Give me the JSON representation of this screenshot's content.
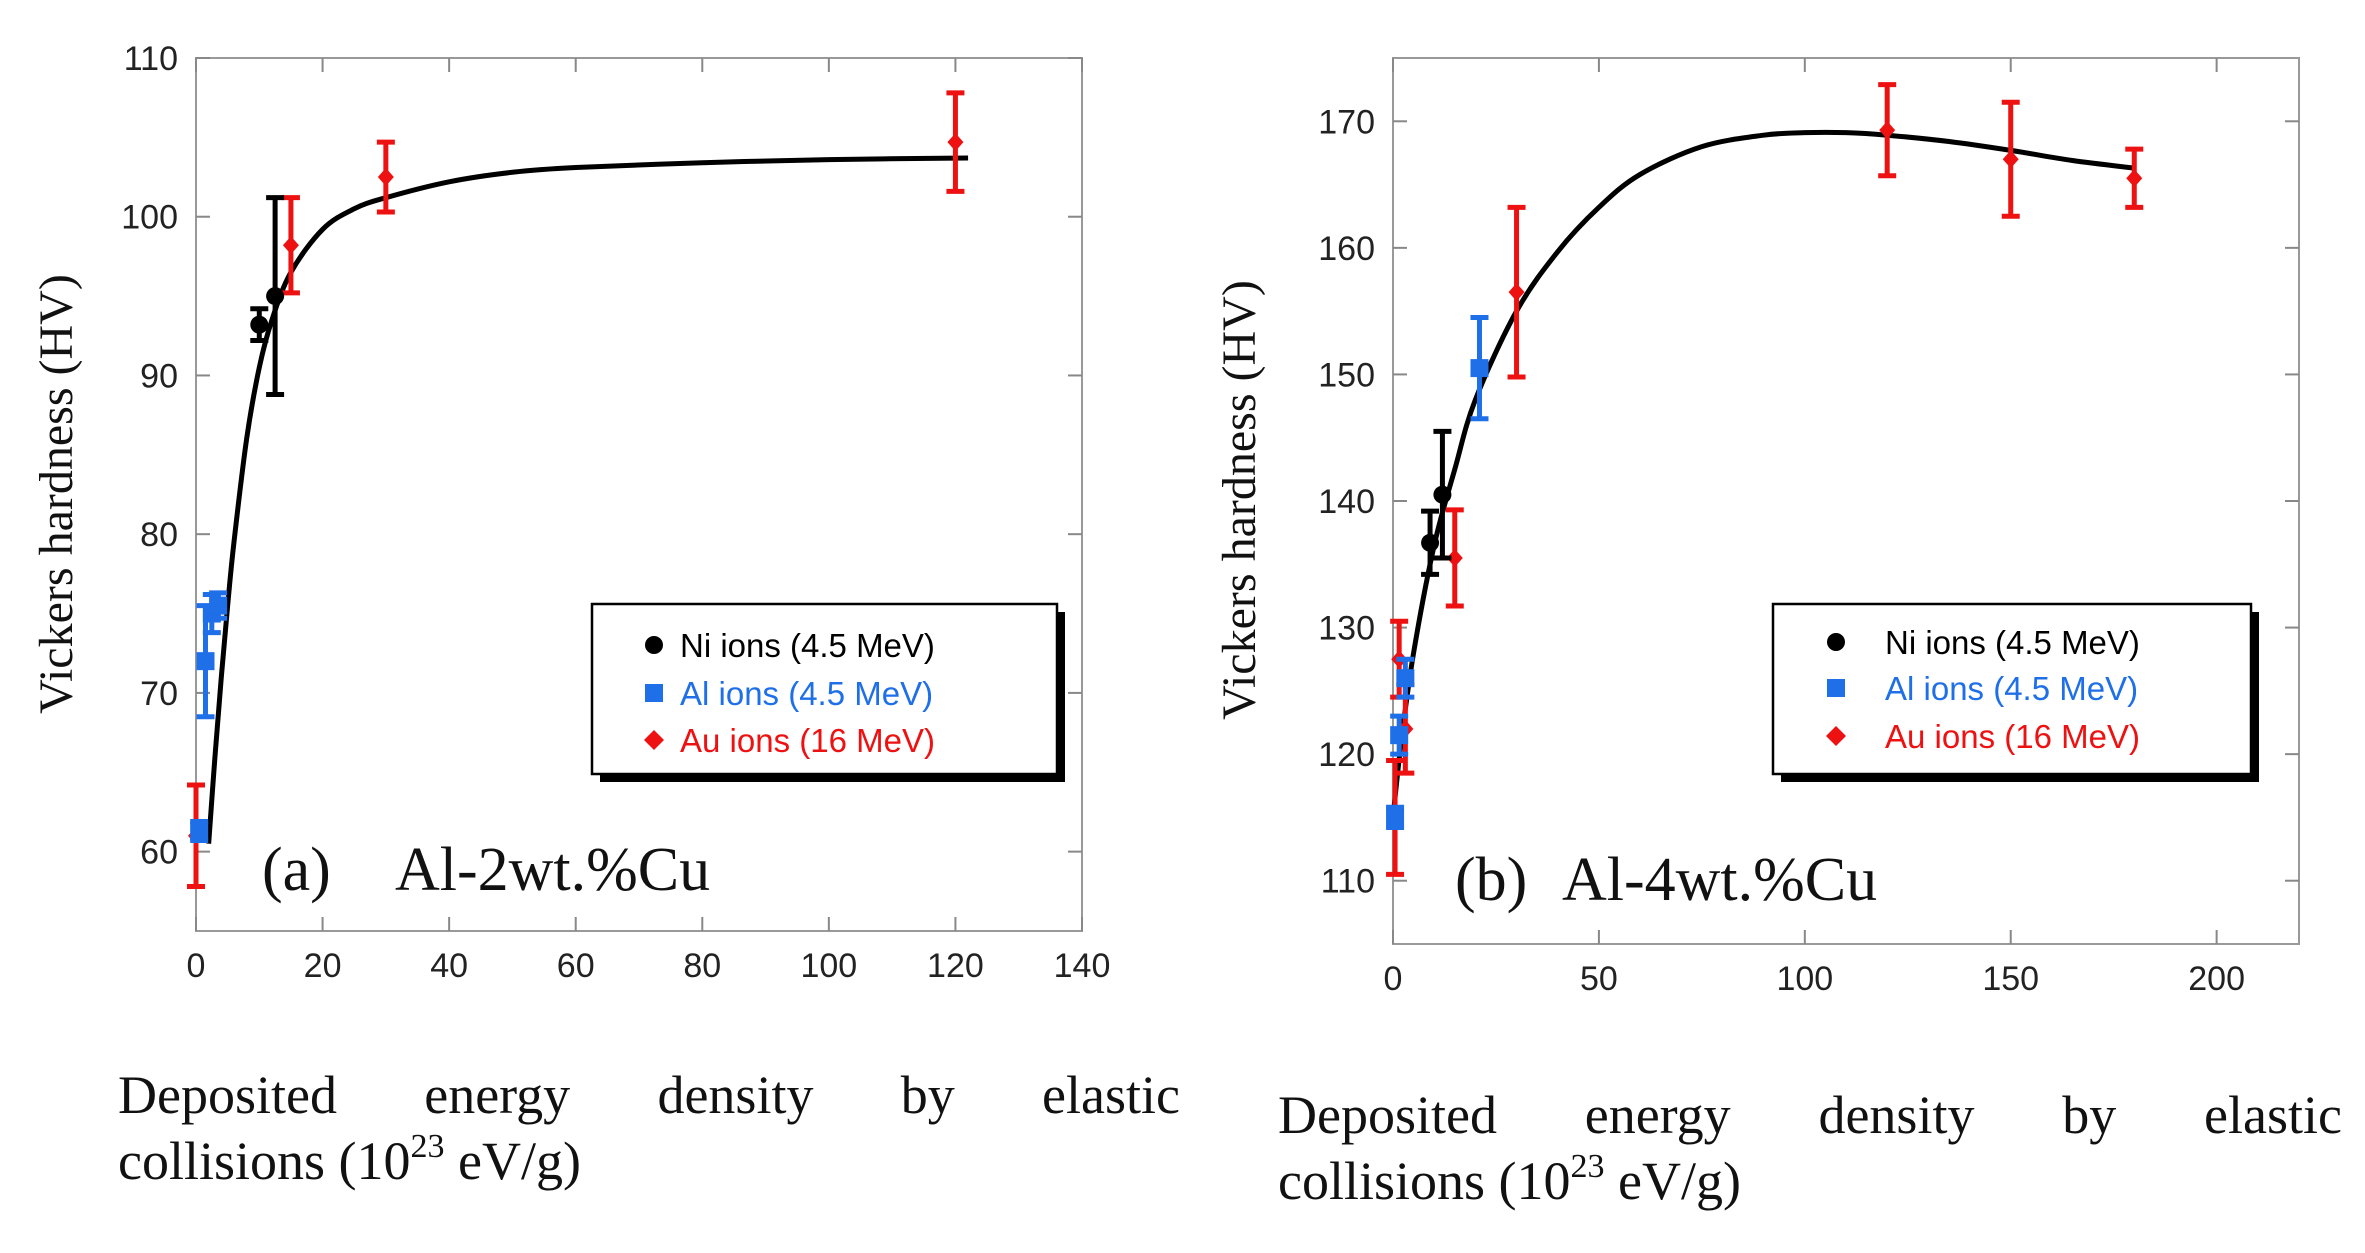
{
  "colors": {
    "ni": "#000000",
    "al": "#1f6fe8",
    "au": "#ee1111"
  },
  "panels": [
    {
      "id": "a",
      "panel_label": "(a)",
      "alloy": "Al-2wt.%Cu",
      "ylabel": "Vickers hardness (HV)",
      "xcaption_words": [
        "Deposited",
        "energy",
        "density",
        "by",
        "elastic"
      ],
      "xcaption_line2_pre": "collisions (10",
      "xcaption_exp": "23",
      "xcaption_line2_post": " eV/g)",
      "legend": [
        "Ni ions (4.5 MeV)",
        "Al ions (4.5 MeV)",
        "Au ions (16 MeV)"
      ]
    },
    {
      "id": "b",
      "panel_label": "(b)",
      "alloy": "Al-4wt.%Cu",
      "ylabel": "Vickers hardness (HV)",
      "xcaption_words": [
        "Deposited",
        "energy",
        "density",
        "by",
        "elastic"
      ],
      "xcaption_line2_pre": "collisions (10",
      "xcaption_exp": "23",
      "xcaption_line2_post": " eV/g)",
      "legend": [
        "Ni ions (4.5 MeV)",
        "Al ions (4.5 MeV)",
        "Au ions (16 MeV)"
      ]
    }
  ],
  "chart_data": [
    {
      "type": "scatter",
      "title": "(a) Al-2wt.%Cu",
      "xlabel": "Deposited energy density by elastic collisions (10^23 eV/g)",
      "ylabel": "Vickers hardness (HV)",
      "xlim": [
        0,
        140
      ],
      "ylim": [
        55,
        110
      ],
      "xticks": [
        0,
        20,
        40,
        60,
        80,
        100,
        120,
        140
      ],
      "xtick_labels": [
        "0",
        "20",
        "40",
        "60",
        "80",
        "100",
        "120",
        "140"
      ],
      "yticks": [
        60,
        70,
        80,
        90,
        100,
        110
      ],
      "ytick_labels": [
        "60",
        "70",
        "80",
        "90",
        "100",
        "110"
      ],
      "legend_position": "right",
      "series": [
        {
          "name": "Ni ions (4.5 MeV)",
          "marker": "circle",
          "color": "#000000",
          "points": [
            {
              "x": 10,
              "y": 93.2,
              "err": 1.0
            },
            {
              "x": 12.5,
              "y": 95,
              "err": 6.2
            }
          ]
        },
        {
          "name": "Al ions (4.5 MeV)",
          "marker": "square",
          "color": "#1f6fe8",
          "points": [
            {
              "x": 0.5,
              "y": 61.3,
              "err": 0.6
            },
            {
              "x": 1.5,
              "y": 72,
              "err": 3.5
            },
            {
              "x": 2.5,
              "y": 75,
              "err": 1.2
            },
            {
              "x": 3.5,
              "y": 75.5,
              "err": 0.8
            }
          ]
        },
        {
          "name": "Au ions (16 MeV)",
          "marker": "diamond",
          "color": "#ee1111",
          "points": [
            {
              "x": 0,
              "y": 61,
              "err": 3.2
            },
            {
              "x": 15,
              "y": 98.2,
              "err": 3.0
            },
            {
              "x": 30,
              "y": 102.5,
              "err": 2.2
            },
            {
              "x": 120,
              "y": 104.7,
              "err": 3.1
            }
          ]
        }
      ],
      "fit_curve": {
        "x": [
          2,
          3,
          4,
          5,
          6,
          8,
          10,
          12,
          15,
          20,
          25,
          30,
          40,
          50,
          60,
          80,
          100,
          122
        ],
        "y": [
          60.5,
          66,
          71,
          75.5,
          79.5,
          86,
          90.5,
          93.5,
          96.5,
          99.2,
          100.5,
          101.2,
          102.2,
          102.8,
          103.1,
          103.4,
          103.6,
          103.7
        ]
      }
    },
    {
      "type": "scatter",
      "title": "(b) Al-4wt.%Cu",
      "xlabel": "Deposited energy density by elastic collisions (10^23 eV/g)",
      "ylabel": "Vickers hardness (HV)",
      "xlim": [
        0,
        220
      ],
      "ylim": [
        105,
        175
      ],
      "xticks": [
        0,
        50,
        100,
        150,
        200
      ],
      "xtick_labels": [
        "0",
        "50",
        "100",
        "150",
        "200"
      ],
      "yticks": [
        110,
        120,
        130,
        140,
        150,
        160,
        170
      ],
      "ytick_labels": [
        "110",
        "120",
        "130",
        "140",
        "150",
        "160",
        "170"
      ],
      "legend_position": "right",
      "series": [
        {
          "name": "Ni ions (4.5 MeV)",
          "marker": "circle",
          "color": "#000000",
          "points": [
            {
              "x": 9,
              "y": 136.7,
              "err": 2.5
            },
            {
              "x": 12,
              "y": 140.5,
              "err": 5.0
            }
          ]
        },
        {
          "name": "Al ions (4.5 MeV)",
          "marker": "square",
          "color": "#1f6fe8",
          "points": [
            {
              "x": 0.5,
              "y": 115,
              "err": 0.8
            },
            {
              "x": 1.5,
              "y": 121.5,
              "err": 1.5
            },
            {
              "x": 3,
              "y": 126,
              "err": 1.5
            },
            {
              "x": 21,
              "y": 150.5,
              "err": 4.0
            }
          ]
        },
        {
          "name": "Au ions (16 MeV)",
          "marker": "diamond",
          "color": "#ee1111",
          "points": [
            {
              "x": 0.5,
              "y": 115,
              "err": 4.5
            },
            {
              "x": 1.5,
              "y": 127.5,
              "err": 3.0
            },
            {
              "x": 3,
              "y": 122,
              "err": 3.5
            },
            {
              "x": 15,
              "y": 135.5,
              "err": 3.8
            },
            {
              "x": 30,
              "y": 156.5,
              "err": 6.7
            },
            {
              "x": 120,
              "y": 169.3,
              "err": 3.6
            },
            {
              "x": 150,
              "y": 167,
              "err": 4.5
            },
            {
              "x": 180,
              "y": 165.5,
              "err": 2.3
            }
          ]
        }
      ],
      "fit_curve": {
        "x": [
          0,
          2,
          5,
          10,
          15,
          20,
          30,
          40,
          50,
          60,
          75,
          90,
          100,
          110,
          120,
          135,
          150,
          165,
          180
        ],
        "y": [
          115,
          121,
          128,
          136.5,
          142.5,
          148,
          155,
          159.7,
          163.2,
          165.8,
          168,
          168.9,
          169.1,
          169.1,
          168.9,
          168.4,
          167.7,
          166.9,
          166.3
        ]
      }
    }
  ]
}
